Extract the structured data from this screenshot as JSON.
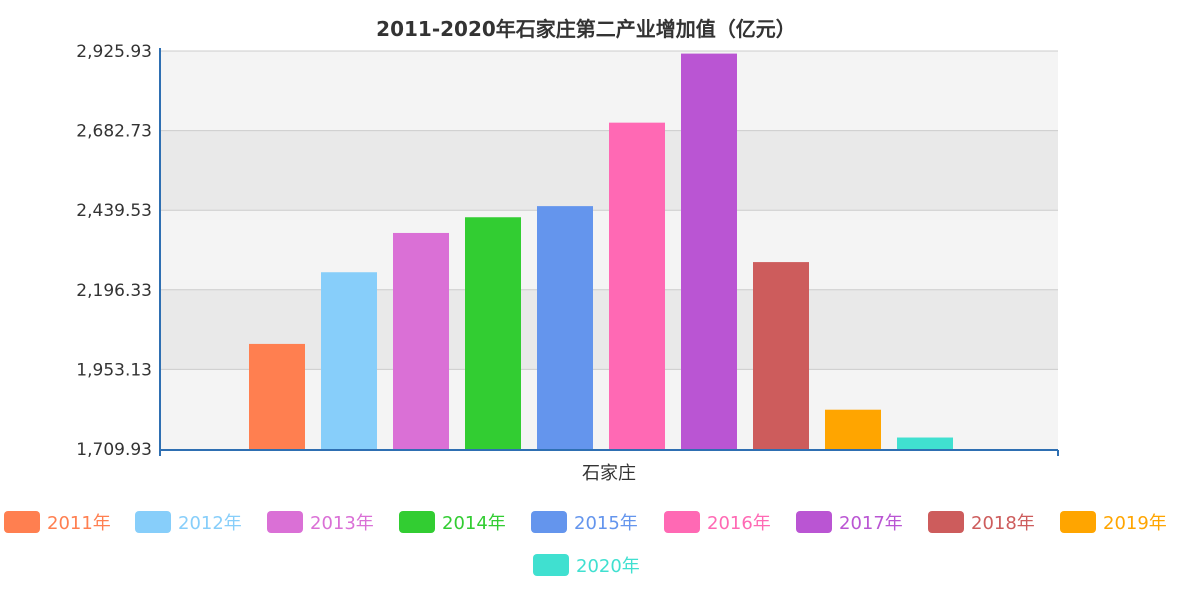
{
  "chart_data": {
    "type": "bar",
    "title": "2011-2020年石家庄第二产业增加值（亿元）",
    "categories": [
      "石家庄"
    ],
    "y_ticks": [
      "1,709.93",
      "1,953.13",
      "2,196.33",
      "2,439.53",
      "2,682.73",
      "2,925.93"
    ],
    "ylim": [
      1709.93,
      2925.93
    ],
    "grid": true,
    "legend_position": "bottom",
    "series": [
      {
        "name": "2011年",
        "values": [
          2031
        ],
        "color": "#FF7F50"
      },
      {
        "name": "2012年",
        "values": [
          2250
        ],
        "color": "#87CEFA"
      },
      {
        "name": "2013年",
        "values": [
          2370
        ],
        "color": "#DA70D6"
      },
      {
        "name": "2014年",
        "values": [
          2418
        ],
        "color": "#32CD32"
      },
      {
        "name": "2015年",
        "values": [
          2452
        ],
        "color": "#6495ED"
      },
      {
        "name": "2016年",
        "values": [
          2707
        ],
        "color": "#FF69B4"
      },
      {
        "name": "2017年",
        "values": [
          2918
        ],
        "color": "#BA55D3"
      },
      {
        "name": "2018年",
        "values": [
          2281
        ],
        "color": "#CD5C5C"
      },
      {
        "name": "2019年",
        "values": [
          1830
        ],
        "color": "#FFA500"
      },
      {
        "name": "2020年",
        "values": [
          1745
        ],
        "color": "#40E0D0"
      }
    ]
  }
}
